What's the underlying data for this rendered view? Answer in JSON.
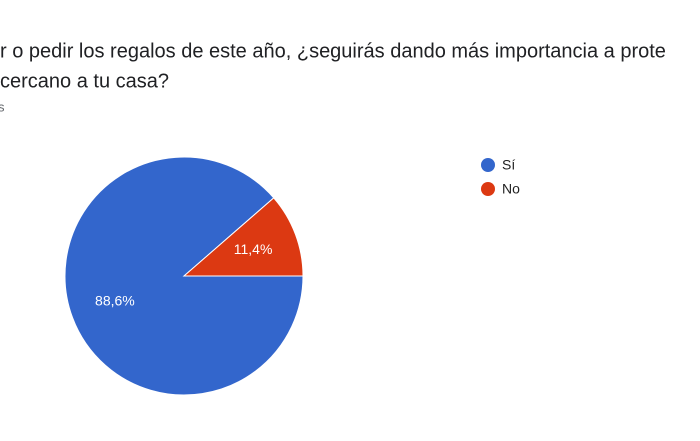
{
  "chart_data": {
    "type": "pie",
    "title_lines": [
      "r o pedir los regalos de este año, ¿seguirás dando más importancia a prote",
      "cercano a tu casa?"
    ],
    "subtitle": "s",
    "categories": [
      "Sí",
      "No"
    ],
    "values": [
      88.6,
      11.4
    ],
    "value_labels": [
      "88,6%",
      "11,4%"
    ],
    "colors": [
      "#3366cc",
      "#dc3912"
    ]
  }
}
